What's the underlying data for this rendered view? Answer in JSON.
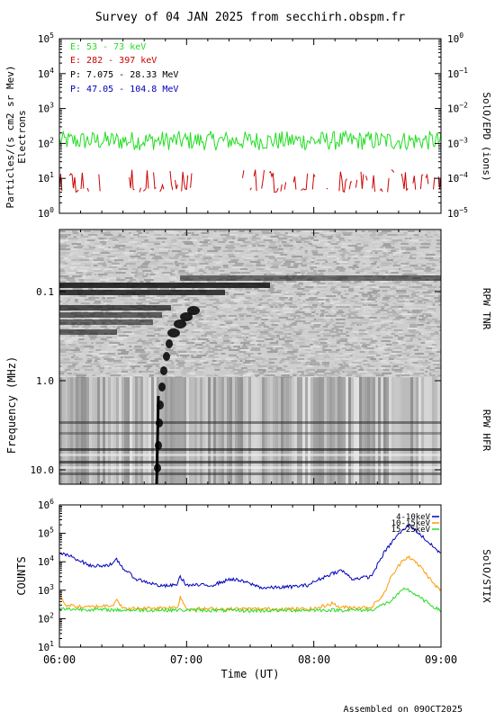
{
  "title": "Survey of 04 JAN 2025 from secchirh.obspm.fr",
  "footer": "Assembled on 09OCT2025",
  "colors": {
    "green": "#22dd22",
    "red": "#cc0000",
    "black": "#000000",
    "blue": "#0000bb",
    "orange": "#ff9900"
  },
  "chart_data": [
    {
      "type": "line",
      "ylabel_1": "Particles/(s cm2 sr Mev)",
      "ylabel_2": "Electrons",
      "right_label": "SolO/EPD (ions)",
      "y_scale": "log",
      "ylim": [
        1,
        100000
      ],
      "y_ticks": [
        {
          "v": 1,
          "base": "10",
          "exp": "0"
        },
        {
          "v": 10,
          "base": "10",
          "exp": "1"
        },
        {
          "v": 100,
          "base": "10",
          "exp": "2"
        },
        {
          "v": 1000,
          "base": "10",
          "exp": "3"
        },
        {
          "v": 10000,
          "base": "10",
          "exp": "4"
        },
        {
          "v": 100000,
          "base": "10",
          "exp": "5"
        }
      ],
      "right_ylim": [
        1e-05,
        1
      ],
      "right_ticks": [
        {
          "v": 1,
          "base": "10",
          "exp": "0"
        },
        {
          "v": 0.1,
          "base": "10",
          "exp": "−1"
        },
        {
          "v": 0.01,
          "base": "10",
          "exp": "−2"
        },
        {
          "v": 0.001,
          "base": "10",
          "exp": "−3"
        },
        {
          "v": 0.0001,
          "base": "10",
          "exp": "−4"
        },
        {
          "v": 1e-05,
          "base": "10",
          "exp": "−5"
        }
      ],
      "legend": [
        {
          "label": "E: 53 - 73 keV",
          "color": "#22dd22"
        },
        {
          "label": "E: 282 - 397 keV",
          "color": "#cc0000"
        },
        {
          "label": "P: 7.075 - 28.33 MeV",
          "color": "#000000"
        },
        {
          "label": "P: 47.05 - 104.8 MeV",
          "color": "#0000bb"
        }
      ],
      "series": [
        {
          "color": "#22dd22",
          "approx_level": 120,
          "range": [
            60,
            250
          ]
        },
        {
          "color": "#cc0000",
          "approx_level": 8,
          "range": [
            4,
            18
          ],
          "note": "intermittent"
        }
      ]
    },
    {
      "type": "heatmap",
      "ylabel": "Frequency (MHz)",
      "right_label_top": "RPW TNR",
      "right_label_bottom": "RPW HFR",
      "y_ticks": [
        "0.1",
        "1.0",
        "10.0"
      ],
      "y_scale": "log",
      "y_direction": "inverted",
      "features": [
        {
          "name": "type III burst",
          "time_start": "06:47",
          "freq_start": 0.25,
          "time_end": "06:50",
          "freq_end": 12
        }
      ]
    },
    {
      "type": "line",
      "ylabel": "COUNTS",
      "right_label": "SolO/STIX",
      "y_scale": "log",
      "ylim": [
        10,
        1000000
      ],
      "y_ticks": [
        {
          "v": 10,
          "base": "10",
          "exp": "1"
        },
        {
          "v": 100,
          "base": "10",
          "exp": "2"
        },
        {
          "v": 1000,
          "base": "10",
          "exp": "3"
        },
        {
          "v": 10000,
          "base": "10",
          "exp": "4"
        },
        {
          "v": 100000,
          "base": "10",
          "exp": "5"
        },
        {
          "v": 1000000,
          "base": "10",
          "exp": "6"
        }
      ],
      "xlabel": "Time (UT)",
      "x_ticks": [
        "06:00",
        "07:00",
        "08:00",
        "09:00"
      ],
      "x_range_hours": [
        6,
        9
      ],
      "series": [
        {
          "name": "4-10keV",
          "color": "#0000bb",
          "points": [
            [
              6.0,
              20000
            ],
            [
              6.1,
              15000
            ],
            [
              6.25,
              7000
            ],
            [
              6.42,
              8000
            ],
            [
              6.45,
              12000
            ],
            [
              6.5,
              6000
            ],
            [
              6.6,
              2500
            ],
            [
              6.8,
              1400
            ],
            [
              6.92,
              1500
            ],
            [
              6.95,
              3000
            ],
            [
              7.0,
              1500
            ],
            [
              7.2,
              1500
            ],
            [
              7.35,
              2500
            ],
            [
              7.45,
              2000
            ],
            [
              7.6,
              1200
            ],
            [
              7.8,
              1300
            ],
            [
              7.95,
              1500
            ],
            [
              8.05,
              2500
            ],
            [
              8.15,
              4000
            ],
            [
              8.22,
              5000
            ],
            [
              8.3,
              2500
            ],
            [
              8.45,
              3000
            ],
            [
              8.55,
              20000
            ],
            [
              8.65,
              80000
            ],
            [
              8.75,
              200000
            ],
            [
              8.85,
              80000
            ],
            [
              8.95,
              30000
            ],
            [
              9.0,
              20000
            ]
          ]
        },
        {
          "name": "10-15keV",
          "color": "#ff9900",
          "points": [
            [
              6.0,
              700
            ],
            [
              6.05,
              300
            ],
            [
              6.2,
              250
            ],
            [
              6.42,
              300
            ],
            [
              6.45,
              500
            ],
            [
              6.5,
              220
            ],
            [
              6.93,
              250
            ],
            [
              6.95,
              600
            ],
            [
              7.0,
              220
            ],
            [
              7.5,
              220
            ],
            [
              8.0,
              220
            ],
            [
              8.15,
              350
            ],
            [
              8.2,
              250
            ],
            [
              8.45,
              250
            ],
            [
              8.55,
              700
            ],
            [
              8.6,
              2500
            ],
            [
              8.7,
              12000
            ],
            [
              8.75,
              15000
            ],
            [
              8.85,
              6000
            ],
            [
              8.95,
              1500
            ],
            [
              9.0,
              1000
            ]
          ]
        },
        {
          "name": "15-25keV",
          "color": "#22dd22",
          "points": [
            [
              6.0,
              220
            ],
            [
              6.5,
              200
            ],
            [
              7.0,
              200
            ],
            [
              7.5,
              190
            ],
            [
              8.0,
              200
            ],
            [
              8.45,
              200
            ],
            [
              8.6,
              400
            ],
            [
              8.72,
              1200
            ],
            [
              8.8,
              700
            ],
            [
              8.9,
              350
            ],
            [
              9.0,
              180
            ]
          ]
        }
      ]
    }
  ]
}
